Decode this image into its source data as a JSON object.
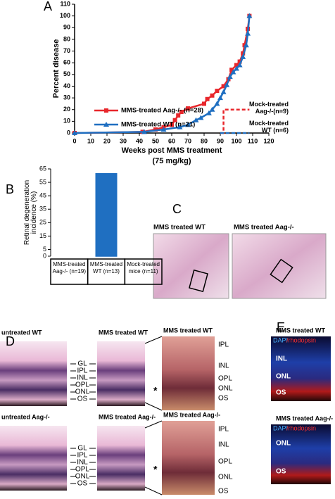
{
  "panel_labels": [
    "A",
    "B",
    "C",
    "D",
    "E"
  ],
  "chart_data": [
    {
      "type": "line",
      "ylabel": "Percent disease",
      "xlabel": "Weeks post MMS treatment",
      "xlabel_sub": "(75 mg/kg)",
      "xlim": [
        0,
        120
      ],
      "xticks": [
        0,
        10,
        20,
        30,
        40,
        50,
        60,
        70,
        80,
        90,
        100,
        110,
        120
      ],
      "ylim": [
        0,
        110
      ],
      "yticks": [
        0,
        10,
        20,
        30,
        40,
        50,
        60,
        70,
        80,
        90,
        100,
        110
      ],
      "series": [
        {
          "name": "MMS-treated Aag-/- (n=28)",
          "color": "#e8262b",
          "marker": "square",
          "dashed": false,
          "x": [
            0,
            42,
            50,
            55,
            60,
            62,
            64,
            66,
            70,
            80,
            82,
            85,
            88,
            92,
            95,
            97,
            100,
            102,
            104,
            105,
            107,
            108
          ],
          "values": [
            0,
            1,
            3,
            5,
            7,
            11,
            15,
            18,
            21,
            25,
            29,
            32,
            36,
            40,
            46,
            54,
            58,
            61,
            68,
            75,
            89,
            100
          ]
        },
        {
          "name": "MMS-treated WT (n=21)",
          "color": "#1f6fc1",
          "marker": "triangle",
          "dashed": false,
          "x": [
            0,
            43,
            55,
            65,
            70,
            75,
            78,
            83,
            85,
            88,
            90,
            92,
            94,
            96,
            98,
            100,
            102,
            104,
            106,
            107,
            108
          ],
          "values": [
            0,
            1,
            3,
            5,
            7,
            11,
            13,
            17,
            20,
            25,
            30,
            35,
            41,
            48,
            52,
            55,
            58,
            65,
            75,
            85,
            100
          ]
        },
        {
          "name": "Mock-treated Aag-/-(n=9)",
          "color": "#e8262b",
          "marker": "none",
          "dashed": true,
          "x": [
            90,
            92,
            92,
            108
          ],
          "values": [
            0,
            0,
            20,
            20
          ]
        },
        {
          "name": "Mock-treated WT (n=6)",
          "color": "#1f6fc1",
          "marker": "none",
          "dashed": true,
          "x": [
            90,
            108
          ],
          "values": [
            0,
            0
          ]
        }
      ]
    },
    {
      "type": "bar",
      "ylabel": "Retinal degeneration incidence (%)",
      "categories": [
        "MMS-treated Aag-/- (n=19)",
        "MMS-treated WT (n=13)",
        "Mock-treated mice (n=11)"
      ],
      "values": [
        0,
        61.5,
        0
      ],
      "colors": [
        "#e8262b",
        "#1f6fc1",
        "#8a4fb0"
      ],
      "ylim": [
        0,
        65
      ],
      "yticks": [
        0,
        5,
        15,
        25,
        35,
        45,
        55,
        65
      ]
    }
  ],
  "panel_c": {
    "titles": [
      "MMS treated WT",
      "MMS treated Aag-/-"
    ]
  },
  "panel_d": {
    "titles": [
      "untreated WT",
      "MMS treated WT",
      "MMS treated WT",
      "untreated Aag-/-",
      "MMS treated Aag-/-",
      "MMS treated Aag-/-"
    ],
    "layers_top": [
      "GL",
      "IPL",
      "INL",
      "OPL",
      "ONL",
      "OS"
    ],
    "layers_bottom": [
      "GL",
      "IPL",
      "INL",
      "OPL",
      "ONL",
      "OS"
    ],
    "zoom_top": [
      "IPL",
      "INL",
      "OPL",
      "ONL",
      "OS"
    ],
    "zoom_bottom": [
      "IPL",
      "INL",
      "OPL",
      "ONL",
      "OS"
    ],
    "asterisks": [
      "*",
      "*"
    ]
  },
  "panel_e": {
    "top": {
      "title": "MMS treated WT",
      "stain": [
        "DAPI",
        "/rhodopsin"
      ],
      "layers": [
        "INL",
        "ONL",
        "OS"
      ]
    },
    "bottom": {
      "title": "MMS treated Aag-/-",
      "stain": [
        "DAPI",
        "/rhodopsin"
      ],
      "layers": [
        "ONL",
        "OS"
      ]
    }
  }
}
